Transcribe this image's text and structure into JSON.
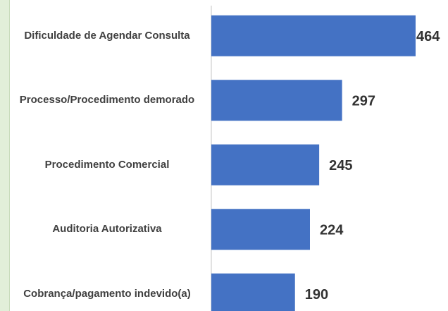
{
  "chart_data": {
    "type": "bar",
    "orientation": "horizontal",
    "categories": [
      "Dificuldade de Agendar Consulta",
      "Processo/Procedimento demorado",
      "Procedimento Comercial",
      "Auditoria Autorizativa",
      "Cobrança/pagamento indevido(a)"
    ],
    "values": [
      464,
      297,
      245,
      224,
      190
    ],
    "color": "#4472c4",
    "xlim": [
      0,
      464
    ]
  }
}
